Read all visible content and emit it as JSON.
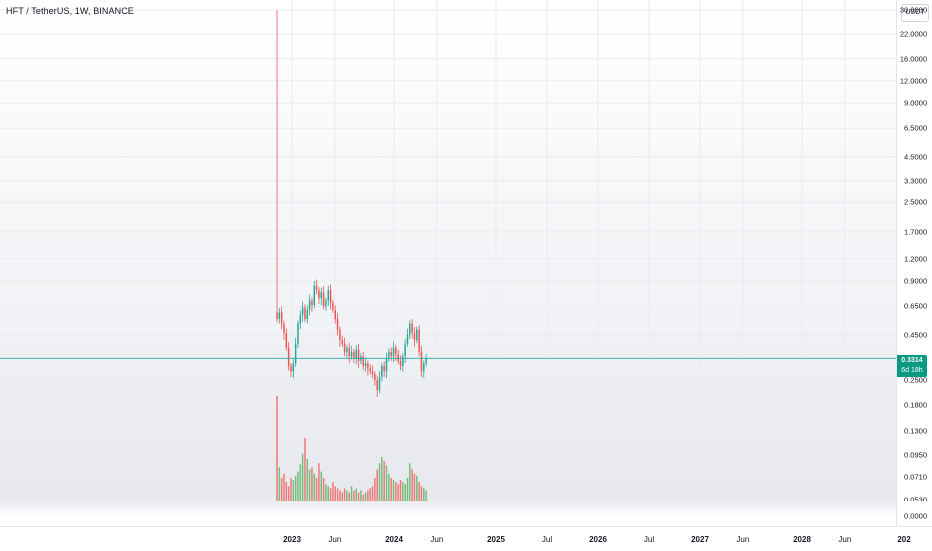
{
  "chart_title": "HFT / TetherUS, 1W, BINANCE",
  "currency_button": "USDT",
  "last_price": {
    "value": "0.3314",
    "countdown": "6d 18h",
    "color": "#089981"
  },
  "colors": {
    "up": "#26a69a",
    "up_bar": "#4caf50",
    "down": "#ef5350",
    "gridline": "#e9ebef",
    "price_line": "#26a69a"
  },
  "chart_data": {
    "type": "candlestick",
    "scale": "log",
    "price_ticks": [
      "30.0000",
      "22.0000",
      "16.0000",
      "12.0000",
      "9.0000",
      "6.5000",
      "4.5000",
      "3.3000",
      "2.5000",
      "1.7000",
      "1.2000",
      "0.9000",
      "0.6500",
      "0.4500",
      "0.2500",
      "0.1800",
      "0.1300",
      "0.0950",
      "0.0710",
      "0.0530"
    ],
    "zero_label": "0.0000",
    "time_ticks": [
      {
        "label": "2023",
        "t": 2023.0,
        "major": true
      },
      {
        "label": "Jun",
        "t": 2023.42,
        "major": false
      },
      {
        "label": "2024",
        "t": 2024.0,
        "major": true
      },
      {
        "label": "Jun",
        "t": 2024.42,
        "major": false
      },
      {
        "label": "2025",
        "t": 2025.0,
        "major": true
      },
      {
        "label": "Jul",
        "t": 2025.5,
        "major": false
      },
      {
        "label": "2026",
        "t": 2026.0,
        "major": true
      },
      {
        "label": "Jul",
        "t": 2026.5,
        "major": false
      },
      {
        "label": "2027",
        "t": 2027.0,
        "major": true
      },
      {
        "label": "Jun",
        "t": 2027.42,
        "major": false
      },
      {
        "label": "2028",
        "t": 2028.0,
        "major": true
      },
      {
        "label": "Jun",
        "t": 2028.42,
        "major": false
      },
      {
        "label": "202",
        "t": 2029.0,
        "major": true
      }
    ],
    "first_week_high": 30,
    "closes": [
      0.55,
      0.6,
      0.52,
      0.46,
      0.38,
      0.3,
      0.28,
      0.31,
      0.4,
      0.52,
      0.58,
      0.64,
      0.55,
      0.62,
      0.7,
      0.66,
      0.85,
      0.8,
      0.72,
      0.78,
      0.65,
      0.7,
      0.8,
      0.68,
      0.62,
      0.55,
      0.48,
      0.42,
      0.4,
      0.36,
      0.38,
      0.34,
      0.36,
      0.33,
      0.37,
      0.32,
      0.34,
      0.3,
      0.31,
      0.29,
      0.28,
      0.27,
      0.25,
      0.22,
      0.26,
      0.3,
      0.28,
      0.33,
      0.36,
      0.34,
      0.38,
      0.35,
      0.32,
      0.3,
      0.34,
      0.4,
      0.45,
      0.52,
      0.46,
      0.42,
      0.48,
      0.36,
      0.28,
      0.31,
      0.3314
    ],
    "volumes": [
      1.0,
      0.32,
      0.22,
      0.26,
      0.18,
      0.14,
      0.22,
      0.2,
      0.24,
      0.28,
      0.35,
      0.45,
      0.6,
      0.4,
      0.3,
      0.32,
      0.26,
      0.22,
      0.36,
      0.28,
      0.22,
      0.16,
      0.14,
      0.12,
      0.18,
      0.14,
      0.12,
      0.1,
      0.08,
      0.12,
      0.1,
      0.08,
      0.14,
      0.1,
      0.12,
      0.08,
      0.1,
      0.06,
      0.08,
      0.1,
      0.12,
      0.14,
      0.22,
      0.3,
      0.36,
      0.42,
      0.38,
      0.34,
      0.26,
      0.22,
      0.2,
      0.18,
      0.16,
      0.2,
      0.18,
      0.16,
      0.22,
      0.36,
      0.3,
      0.26,
      0.24,
      0.18,
      0.14,
      0.12,
      0.1
    ]
  }
}
